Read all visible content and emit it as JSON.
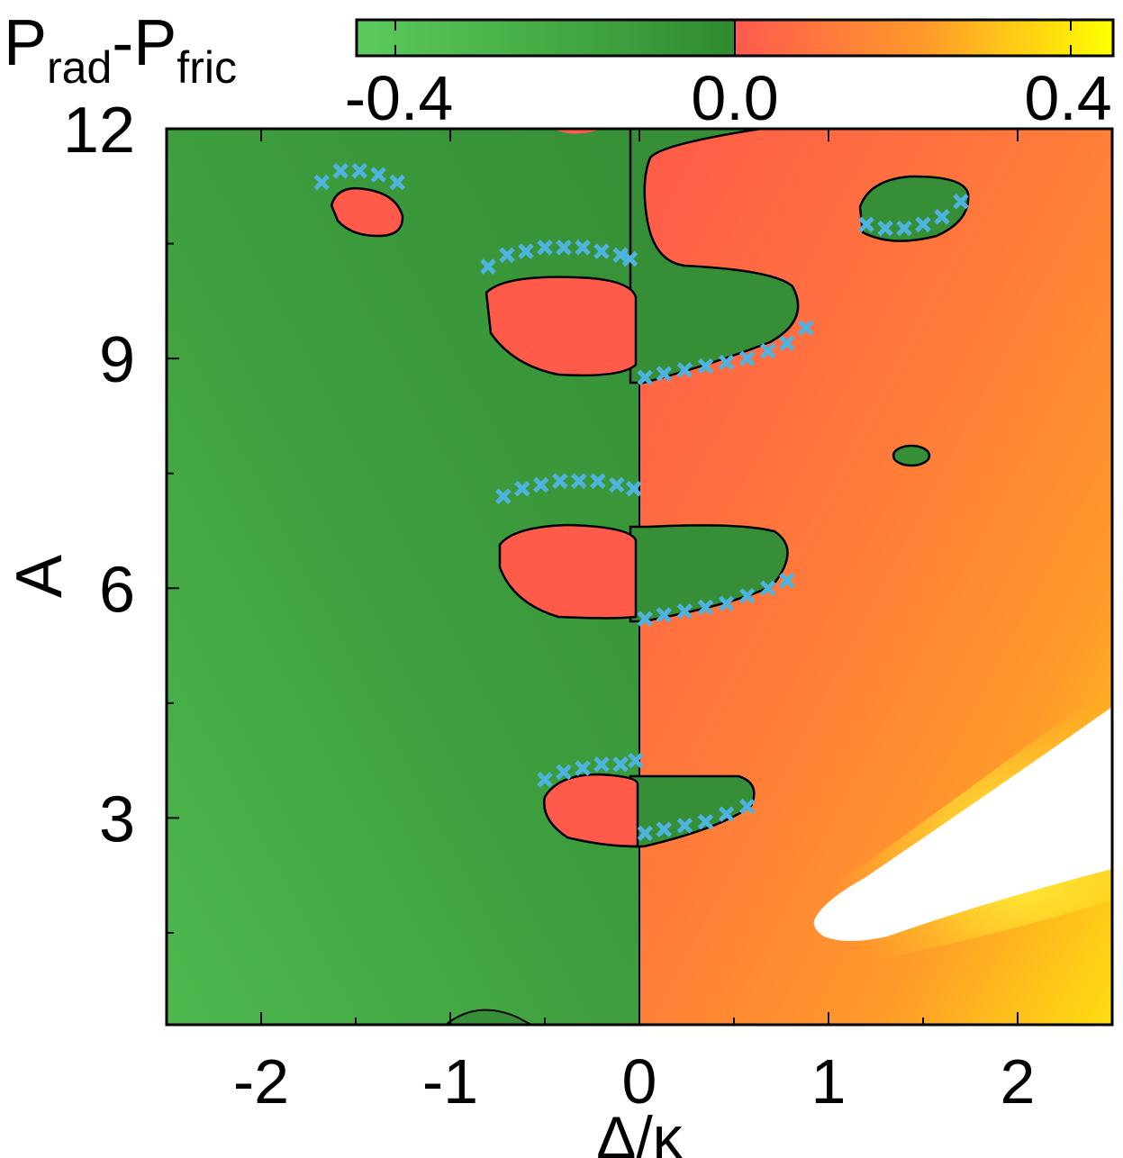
{
  "chart_data": {
    "type": "heatmap",
    "xlabel": "Δ/κ",
    "ylabel": "A",
    "xlim": [
      -2.5,
      2.5
    ],
    "ylim": [
      0.3,
      12
    ],
    "xticks": [
      -2,
      -1,
      0,
      1,
      2
    ],
    "xtick_labels": [
      "-2",
      "-1",
      "0",
      "1",
      "2"
    ],
    "yticks": [
      3,
      6,
      9,
      12
    ],
    "ytick_labels": [
      "3",
      "6",
      "9",
      "12"
    ],
    "colorbar": {
      "label_main": "P",
      "label_sub1": "rad",
      "label_dash": "-P",
      "label_sub2": "fric",
      "range": [
        -0.4,
        0.4
      ],
      "ticks": [
        -0.4,
        0.0,
        0.4
      ],
      "tick_labels": [
        "-0.4",
        "0.0",
        "0.4"
      ],
      "stops": [
        {
          "value": -0.4,
          "color": "#5ccb5c"
        },
        {
          "value": 0.0,
          "color": "#2e8b2e"
        },
        {
          "value": 0.001,
          "color": "#ff5a4e"
        },
        {
          "value": 0.2,
          "color": "#ff9a2a"
        },
        {
          "value": 0.4,
          "color": "#ffff00"
        }
      ]
    },
    "colors": {
      "negative_region": "#3a953a",
      "positive_region": "#ff5c4a",
      "saturated_region": "#ffffff",
      "boundary": "#000000",
      "markers": "#4fb3e0"
    },
    "regions": {
      "negative_islands_in_positive": [
        {
          "x": [
            1.2,
            1.7
          ],
          "y": [
            10.6,
            11.4
          ]
        },
        {
          "x": [
            1.34,
            1.56
          ],
          "y": [
            7.7,
            8.0
          ]
        },
        {
          "x": [
            0.0,
            0.85
          ],
          "y": [
            8.6,
            10.2
          ]
        },
        {
          "x": [
            0.0,
            0.8
          ],
          "y": [
            5.6,
            7.0
          ]
        },
        {
          "x": [
            0.0,
            0.6
          ],
          "y": [
            2.8,
            3.7
          ]
        }
      ],
      "positive_islands_in_negative": [
        {
          "x": [
            -1.6,
            -1.25
          ],
          "y": [
            10.7,
            11.4
          ]
        },
        {
          "x": [
            -0.82,
            -0.05
          ],
          "y": [
            8.9,
            10.2
          ]
        },
        {
          "x": [
            -0.75,
            -0.03
          ],
          "y": [
            5.8,
            6.9
          ]
        },
        {
          "x": [
            -0.52,
            -0.02
          ],
          "y": [
            2.8,
            3.7
          ]
        }
      ],
      "saturated_wedge": {
        "x": [
          0.95,
          2.5
        ],
        "y": [
          1.1,
          4.6
        ]
      }
    },
    "series": [
      {
        "marker": "x",
        "x": [
          -1.68,
          -1.58,
          -1.48,
          -1.38,
          -1.28,
          -0.8,
          -0.7,
          -0.6,
          -0.5,
          -0.4,
          -0.3,
          -0.2,
          -0.1,
          -0.05,
          0.03,
          0.13,
          0.24,
          0.35,
          0.46,
          0.57,
          0.68,
          0.78,
          0.88,
          -0.72,
          -0.62,
          -0.52,
          -0.42,
          -0.32,
          -0.22,
          -0.12,
          -0.03,
          0.03,
          0.13,
          0.24,
          0.35,
          0.46,
          0.57,
          0.68,
          0.78,
          -0.5,
          -0.4,
          -0.3,
          -0.2,
          -0.1,
          -0.02,
          0.03,
          0.13,
          0.24,
          0.35,
          0.46,
          0.57,
          1.2,
          1.3,
          1.4,
          1.5,
          1.6,
          1.7
        ],
        "y": [
          11.3,
          11.45,
          11.45,
          11.4,
          11.3,
          10.2,
          10.35,
          10.4,
          10.45,
          10.45,
          10.45,
          10.4,
          10.35,
          10.3,
          8.75,
          8.8,
          8.85,
          8.9,
          8.95,
          9.0,
          9.1,
          9.2,
          9.4,
          7.2,
          7.3,
          7.35,
          7.4,
          7.4,
          7.4,
          7.35,
          7.3,
          5.6,
          5.65,
          5.7,
          5.75,
          5.8,
          5.9,
          6.0,
          6.1,
          3.5,
          3.6,
          3.65,
          3.7,
          3.7,
          3.75,
          2.8,
          2.85,
          2.9,
          2.95,
          3.05,
          3.15,
          10.75,
          10.7,
          10.7,
          10.75,
          10.85,
          11.05
        ]
      }
    ]
  }
}
